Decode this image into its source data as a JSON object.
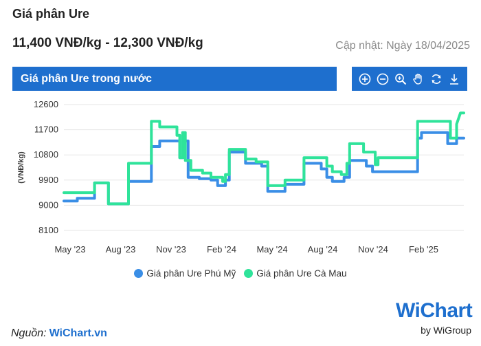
{
  "header": {
    "title": "Giá phân Ure",
    "price_range": "11,400 VNĐ/kg - 12,300 VNĐ/kg",
    "updated": "Cập nhật: Ngày 18/04/2025"
  },
  "chart_header": {
    "title": "Giá phân Ure trong nước"
  },
  "toolbar": {
    "tools": [
      "zoom-in-icon",
      "zoom-out-icon",
      "zoom-magnifier-icon",
      "pan-hand-icon",
      "reset-icon",
      "download-icon"
    ]
  },
  "footer": {
    "source_label": "Nguồn:",
    "source_link": "WiChart.vn",
    "logo_text": "WiChart",
    "logo_sub": "by WiGroup"
  },
  "colors": {
    "accent": "#1e6fce",
    "series_phu_my": "#3a8ee6",
    "series_ca_mau": "#2fe39a"
  },
  "chart_data": {
    "type": "line",
    "title": "Giá phân Ure trong nước",
    "xlabel": "",
    "ylabel": "(VNĐ/kg)",
    "x_ticks": [
      "May '23",
      "Aug '23",
      "Nov '23",
      "Feb '24",
      "May '24",
      "Aug '24",
      "Nov '24",
      "Feb '25"
    ],
    "y_ticks": [
      8100,
      9000,
      9900,
      10800,
      11700,
      12600
    ],
    "ylim": [
      8100,
      12600
    ],
    "xlim": [
      "2023-05-01",
      "2025-04-18"
    ],
    "grid": true,
    "legend_position": "bottom",
    "series": [
      {
        "name": "Giá phân Ure Phú Mỹ",
        "color": "#3a8ee6",
        "points": [
          [
            "2023-05-01",
            9150
          ],
          [
            "2023-05-25",
            9150
          ],
          [
            "2023-05-25",
            9250
          ],
          [
            "2023-06-25",
            9250
          ],
          [
            "2023-06-25",
            9800
          ],
          [
            "2023-07-20",
            9800
          ],
          [
            "2023-07-20",
            9050
          ],
          [
            "2023-08-25",
            9050
          ],
          [
            "2023-08-25",
            9850
          ],
          [
            "2023-10-05",
            9850
          ],
          [
            "2023-10-05",
            11100
          ],
          [
            "2023-10-20",
            11100
          ],
          [
            "2023-10-20",
            11300
          ],
          [
            "2023-11-25",
            11300
          ],
          [
            "2023-11-25",
            10700
          ],
          [
            "2023-12-01",
            10700
          ],
          [
            "2023-12-01",
            11300
          ],
          [
            "2023-12-10",
            11300
          ],
          [
            "2023-12-10",
            10000
          ],
          [
            "2023-12-30",
            10000
          ],
          [
            "2023-12-30",
            9950
          ],
          [
            "2024-01-20",
            9950
          ],
          [
            "2024-01-20",
            9900
          ],
          [
            "2024-02-01",
            9900
          ],
          [
            "2024-02-01",
            9700
          ],
          [
            "2024-02-15",
            9700
          ],
          [
            "2024-02-15",
            9900
          ],
          [
            "2024-02-22",
            9900
          ],
          [
            "2024-02-22",
            10900
          ],
          [
            "2024-03-22",
            10900
          ],
          [
            "2024-03-22",
            10500
          ],
          [
            "2024-04-20",
            10500
          ],
          [
            "2024-04-20",
            10400
          ],
          [
            "2024-05-01",
            10400
          ],
          [
            "2024-05-01",
            9500
          ],
          [
            "2024-06-01",
            9500
          ],
          [
            "2024-06-01",
            9750
          ],
          [
            "2024-07-05",
            9750
          ],
          [
            "2024-07-05",
            10500
          ],
          [
            "2024-08-05",
            10500
          ],
          [
            "2024-08-05",
            10300
          ],
          [
            "2024-08-15",
            10300
          ],
          [
            "2024-08-15",
            10000
          ],
          [
            "2024-08-25",
            10000
          ],
          [
            "2024-08-25",
            9850
          ],
          [
            "2024-09-15",
            9850
          ],
          [
            "2024-09-15",
            10000
          ],
          [
            "2024-09-25",
            10000
          ],
          [
            "2024-09-25",
            10600
          ],
          [
            "2024-10-25",
            10600
          ],
          [
            "2024-10-25",
            10400
          ],
          [
            "2024-11-05",
            10400
          ],
          [
            "2024-11-05",
            10200
          ],
          [
            "2025-01-25",
            10200
          ],
          [
            "2025-01-25",
            11400
          ],
          [
            "2025-02-01",
            11400
          ],
          [
            "2025-02-01",
            11600
          ],
          [
            "2025-03-20",
            11600
          ],
          [
            "2025-03-20",
            11200
          ],
          [
            "2025-04-05",
            11200
          ],
          [
            "2025-04-05",
            11400
          ],
          [
            "2025-04-18",
            11400
          ]
        ]
      },
      {
        "name": "Giá phân Ure Cà Mau",
        "color": "#2fe39a",
        "points": [
          [
            "2023-05-01",
            9450
          ],
          [
            "2023-06-25",
            9450
          ],
          [
            "2023-06-25",
            9800
          ],
          [
            "2023-07-20",
            9800
          ],
          [
            "2023-07-20",
            9050
          ],
          [
            "2023-08-25",
            9050
          ],
          [
            "2023-08-25",
            10500
          ],
          [
            "2023-10-05",
            10500
          ],
          [
            "2023-10-05",
            12000
          ],
          [
            "2023-10-20",
            12000
          ],
          [
            "2023-10-20",
            11800
          ],
          [
            "2023-11-20",
            11800
          ],
          [
            "2023-11-20",
            11500
          ],
          [
            "2023-11-25",
            11500
          ],
          [
            "2023-11-25",
            10700
          ],
          [
            "2023-11-30",
            10700
          ],
          [
            "2023-11-30",
            11600
          ],
          [
            "2023-12-05",
            11600
          ],
          [
            "2023-12-05",
            10600
          ],
          [
            "2023-12-15",
            10600
          ],
          [
            "2023-12-15",
            10250
          ],
          [
            "2024-01-05",
            10250
          ],
          [
            "2024-01-05",
            10150
          ],
          [
            "2024-01-20",
            10150
          ],
          [
            "2024-01-20",
            10000
          ],
          [
            "2024-02-10",
            10000
          ],
          [
            "2024-02-10",
            9850
          ],
          [
            "2024-02-15",
            9850
          ],
          [
            "2024-02-15",
            10100
          ],
          [
            "2024-02-22",
            10100
          ],
          [
            "2024-02-22",
            11000
          ],
          [
            "2024-03-22",
            11000
          ],
          [
            "2024-03-22",
            10650
          ],
          [
            "2024-04-10",
            10650
          ],
          [
            "2024-04-10",
            10550
          ],
          [
            "2024-05-01",
            10550
          ],
          [
            "2024-05-01",
            9700
          ],
          [
            "2024-06-01",
            9700
          ],
          [
            "2024-06-01",
            9900
          ],
          [
            "2024-07-05",
            9900
          ],
          [
            "2024-07-05",
            10700
          ],
          [
            "2024-08-15",
            10700
          ],
          [
            "2024-08-15",
            10400
          ],
          [
            "2024-08-25",
            10400
          ],
          [
            "2024-08-25",
            10200
          ],
          [
            "2024-09-10",
            10200
          ],
          [
            "2024-09-10",
            10100
          ],
          [
            "2024-09-20",
            10100
          ],
          [
            "2024-09-20",
            10500
          ],
          [
            "2024-09-25",
            10500
          ],
          [
            "2024-09-25",
            11200
          ],
          [
            "2024-10-20",
            11200
          ],
          [
            "2024-10-20",
            10900
          ],
          [
            "2024-11-10",
            10900
          ],
          [
            "2024-11-10",
            10450
          ],
          [
            "2024-11-15",
            10450
          ],
          [
            "2024-11-15",
            10700
          ],
          [
            "2025-01-25",
            10700
          ],
          [
            "2025-01-25",
            12000
          ],
          [
            "2025-03-25",
            12000
          ],
          [
            "2025-03-25",
            11400
          ],
          [
            "2025-04-05",
            11400
          ],
          [
            "2025-04-05",
            11900
          ],
          [
            "2025-04-12",
            12300
          ],
          [
            "2025-04-18",
            12300
          ]
        ]
      }
    ]
  }
}
